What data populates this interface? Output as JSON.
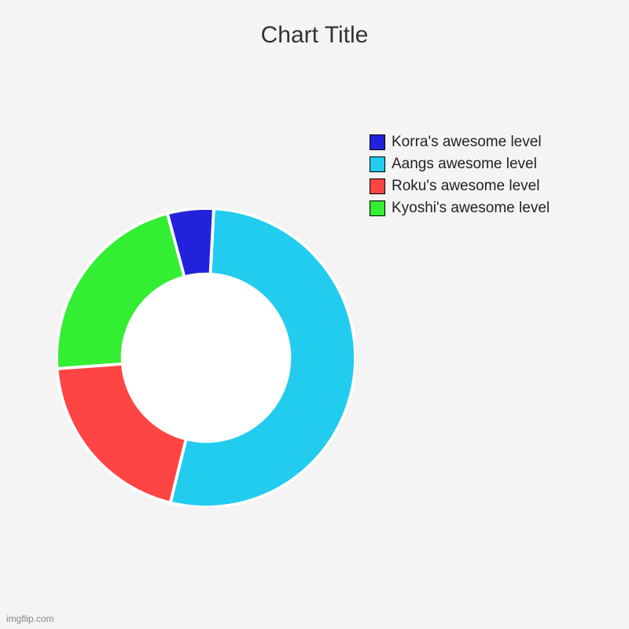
{
  "chart": {
    "type": "donut",
    "title": "Chart Title",
    "title_fontsize": 30,
    "title_color": "#333333",
    "background_color": "#f4f4f4",
    "inner_radius_ratio": 0.56,
    "outer_radius": 190,
    "center_color": "#ffffff",
    "start_angle_deg": -15,
    "segments": [
      {
        "label": "Korra's awesome level",
        "value": 5,
        "color": "#2222dd"
      },
      {
        "label": "Aangs awesome level",
        "value": 53,
        "color": "#22ccee"
      },
      {
        "label": "Roku's awesome level",
        "value": 20,
        "color": "#ff4444"
      },
      {
        "label": "Kyoshi's awesome level",
        "value": 22,
        "color": "#33ee33"
      }
    ],
    "stroke_color": "#ffffff",
    "stroke_width": 2,
    "legend_order": [
      "Korra's awesome level",
      "Aangs awesome level",
      "Roku's awesome level",
      "Kyoshi's awesome level"
    ],
    "legend_fontsize": 19,
    "legend_text_color": "#222222"
  },
  "watermark": "imgflip.com"
}
